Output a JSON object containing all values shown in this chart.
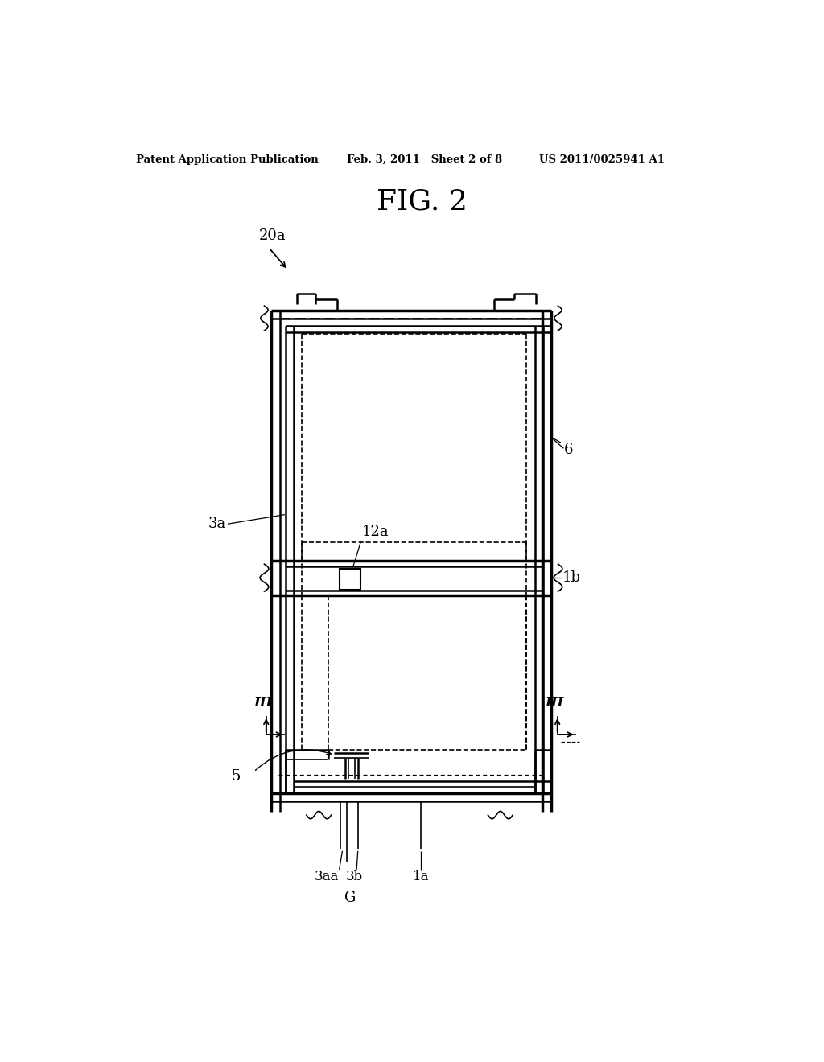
{
  "title": "FIG. 2",
  "header_left": "Patent Application Publication",
  "header_mid": "Feb. 3, 2011   Sheet 2 of 8",
  "header_right": "US 2011/0025941 A1",
  "bg_color": "#ffffff",
  "line_color": "#000000"
}
